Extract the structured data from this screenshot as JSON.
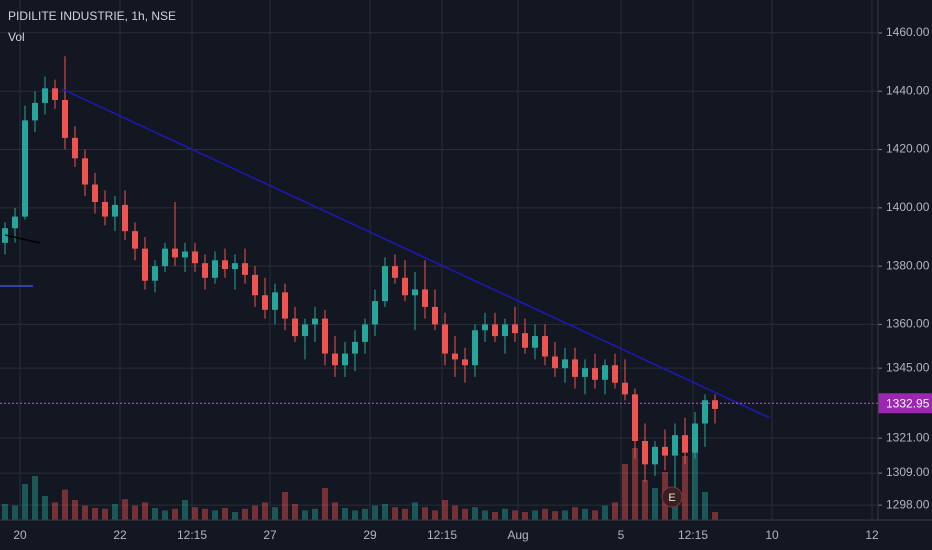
{
  "chart_data": {
    "type": "candlestick",
    "title": "PIDILITE INDUSTRIE, 1h, NSE",
    "volume_label": "Vol",
    "earnings_marker": "E",
    "up_color": "#26a69a",
    "down_color": "#ef5350",
    "grid": true,
    "ylim": [
      1292.9,
      1471.3
    ],
    "yticks": [
      {
        "value": 1298,
        "label": "1298.00"
      },
      {
        "value": 1309,
        "label": "1309.00"
      },
      {
        "value": 1321,
        "label": "1321.00"
      },
      {
        "value": 1345,
        "label": "1345.00"
      },
      {
        "value": 1360,
        "label": "1360.00"
      },
      {
        "value": 1380,
        "label": "1380.00"
      },
      {
        "value": 1400,
        "label": "1400.00"
      },
      {
        "value": 1420,
        "label": "1420.00"
      },
      {
        "value": 1440,
        "label": "1440.00"
      },
      {
        "value": 1460,
        "label": "1460.00"
      }
    ],
    "last_price": 1332.95,
    "xlim": [
      -0.5,
      87.3
    ],
    "xticks": [
      {
        "value": 1.5,
        "label": "20"
      },
      {
        "value": 11.5,
        "label": "22"
      },
      {
        "value": 18.7,
        "label": "12:15"
      },
      {
        "value": 26.5,
        "label": "27"
      },
      {
        "value": 36.5,
        "label": "29"
      },
      {
        "value": 43.7,
        "label": "12:15"
      },
      {
        "value": 51.3,
        "label": "Aug"
      },
      {
        "value": 61.6,
        "label": "5"
      },
      {
        "value": 68.8,
        "label": "12:15"
      },
      {
        "value": 76.7,
        "label": "10"
      },
      {
        "value": 86.7,
        "label": "12"
      }
    ],
    "vlim": [
      0,
      100
    ],
    "candles": [
      [
        1388,
        1395,
        1384,
        1393
      ],
      [
        1393,
        1400,
        1388,
        1397
      ],
      [
        1397,
        1435,
        1396,
        1430
      ],
      [
        1430,
        1440,
        1426,
        1436
      ],
      [
        1436,
        1445,
        1432,
        1441
      ],
      [
        1441,
        1444,
        1434,
        1437
      ],
      [
        1437,
        1452,
        1420,
        1424
      ],
      [
        1424,
        1428,
        1414,
        1417
      ],
      [
        1417,
        1420,
        1404,
        1408
      ],
      [
        1408,
        1412,
        1398,
        1402
      ],
      [
        1402,
        1406,
        1394,
        1397
      ],
      [
        1397,
        1404,
        1392,
        1401
      ],
      [
        1401,
        1406,
        1389,
        1392
      ],
      [
        1392,
        1395,
        1382,
        1386
      ],
      [
        1386,
        1390,
        1372,
        1375
      ],
      [
        1375,
        1382,
        1371,
        1380
      ],
      [
        1380,
        1388,
        1378,
        1386
      ],
      [
        1386,
        1402,
        1380,
        1383
      ],
      [
        1383,
        1388,
        1378,
        1385
      ],
      [
        1385,
        1388,
        1378,
        1381
      ],
      [
        1381,
        1384,
        1372,
        1376
      ],
      [
        1376,
        1385,
        1374,
        1382
      ],
      [
        1382,
        1386,
        1376,
        1379
      ],
      [
        1379,
        1384,
        1372,
        1381
      ],
      [
        1381,
        1386,
        1374,
        1377
      ],
      [
        1377,
        1380,
        1366,
        1370
      ],
      [
        1370,
        1376,
        1362,
        1365
      ],
      [
        1365,
        1374,
        1360,
        1371
      ],
      [
        1371,
        1374,
        1358,
        1362
      ],
      [
        1362,
        1366,
        1354,
        1356
      ],
      [
        1356,
        1362,
        1348,
        1360
      ],
      [
        1360,
        1366,
        1354,
        1362
      ],
      [
        1362,
        1365,
        1346,
        1350
      ],
      [
        1350,
        1356,
        1342,
        1346
      ],
      [
        1346,
        1354,
        1342,
        1350
      ],
      [
        1350,
        1358,
        1344,
        1354
      ],
      [
        1354,
        1362,
        1350,
        1360
      ],
      [
        1360,
        1372,
        1356,
        1368
      ],
      [
        1368,
        1383,
        1366,
        1380
      ],
      [
        1380,
        1384,
        1374,
        1376
      ],
      [
        1376,
        1382,
        1368,
        1370
      ],
      [
        1370,
        1378,
        1358,
        1372
      ],
      [
        1372,
        1382,
        1362,
        1366
      ],
      [
        1366,
        1372,
        1358,
        1360
      ],
      [
        1360,
        1364,
        1346,
        1350
      ],
      [
        1350,
        1356,
        1342,
        1348
      ],
      [
        1348,
        1352,
        1340,
        1346
      ],
      [
        1346,
        1360,
        1342,
        1358
      ],
      [
        1358,
        1364,
        1354,
        1360
      ],
      [
        1360,
        1364,
        1354,
        1356
      ],
      [
        1356,
        1362,
        1350,
        1360
      ],
      [
        1360,
        1366,
        1354,
        1357
      ],
      [
        1357,
        1362,
        1350,
        1352
      ],
      [
        1352,
        1360,
        1348,
        1356
      ],
      [
        1356,
        1360,
        1346,
        1349
      ],
      [
        1349,
        1354,
        1342,
        1345
      ],
      [
        1345,
        1352,
        1340,
        1348
      ],
      [
        1348,
        1352,
        1338,
        1342
      ],
      [
        1342,
        1348,
        1336,
        1345
      ],
      [
        1345,
        1350,
        1338,
        1341
      ],
      [
        1341,
        1348,
        1336,
        1346
      ],
      [
        1346,
        1350,
        1338,
        1340
      ],
      [
        1340,
        1348,
        1334,
        1336
      ],
      [
        1336,
        1338,
        1314,
        1320
      ],
      [
        1320,
        1326,
        1306,
        1312
      ],
      [
        1312,
        1320,
        1308,
        1318
      ],
      [
        1318,
        1324,
        1310,
        1315
      ],
      [
        1315,
        1326,
        1300,
        1322
      ],
      [
        1322,
        1328,
        1312,
        1316
      ],
      [
        1316,
        1330,
        1314,
        1326
      ],
      [
        1326,
        1336,
        1318,
        1334
      ],
      [
        1334,
        1336,
        1326,
        1331
      ]
    ],
    "volume": [
      20,
      18,
      45,
      55,
      30,
      22,
      38,
      25,
      18,
      15,
      14,
      20,
      26,
      18,
      22,
      15,
      12,
      14,
      25,
      16,
      14,
      12,
      15,
      10,
      14,
      18,
      22,
      16,
      35,
      20,
      12,
      14,
      40,
      22,
      15,
      12,
      14,
      18,
      20,
      16,
      14,
      22,
      16,
      12,
      25,
      18,
      14,
      16,
      12,
      10,
      14,
      12,
      10,
      12,
      14,
      11,
      12,
      16,
      14,
      12,
      18,
      22,
      70,
      90,
      50,
      40,
      60,
      35,
      80,
      90,
      35,
      10
    ]
  }
}
